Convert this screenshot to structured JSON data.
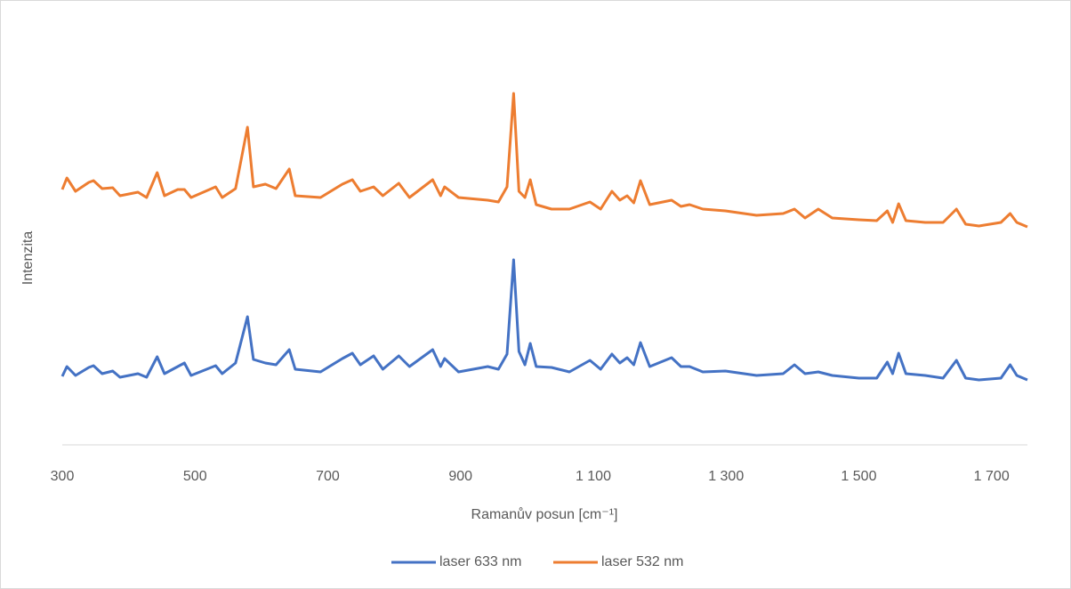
{
  "chart_data": {
    "type": "line",
    "x_label": "Ramanův posun [cm⁻¹]",
    "y_label": "Intenzita",
    "x": [
      300,
      307,
      320,
      340,
      347,
      360,
      376,
      387,
      414,
      427,
      443,
      454,
      474,
      484,
      494,
      531,
      541,
      561,
      579,
      588,
      606,
      622,
      642,
      651,
      689,
      722,
      737,
      749,
      769,
      783,
      807,
      823,
      858,
      870,
      876,
      897,
      941,
      957,
      970,
      980,
      988,
      997,
      1005,
      1014,
      1037,
      1064,
      1095,
      1111,
      1128,
      1140,
      1151,
      1161,
      1171,
      1185,
      1218,
      1232,
      1245,
      1265,
      1299,
      1346,
      1386,
      1403,
      1419,
      1439,
      1460,
      1500,
      1527,
      1543,
      1551,
      1560,
      1571,
      1600,
      1627,
      1647,
      1661,
      1681,
      1714,
      1728,
      1738,
      1754
    ],
    "series": [
      {
        "name": "laser 633 nm",
        "color": "#4472c4",
        "values": [
          77,
          88,
          78,
          87,
          89,
          80,
          83,
          76,
          80,
          76,
          99,
          80,
          88,
          92,
          78,
          89,
          80,
          92,
          144,
          96,
          92,
          90,
          107,
          85,
          82,
          97,
          103,
          90,
          100,
          85,
          100,
          88,
          107,
          88,
          97,
          82,
          88,
          85,
          102,
          208,
          105,
          90,
          114,
          88,
          87,
          82,
          95,
          85,
          102,
          92,
          98,
          90,
          115,
          88,
          98,
          88,
          88,
          82,
          83,
          78,
          80,
          90,
          80,
          82,
          78,
          75,
          75,
          93,
          80,
          103,
          80,
          78,
          75,
          95,
          75,
          73,
          75,
          90,
          78,
          73
        ]
      },
      {
        "name": "laser 532 nm",
        "color": "#ed7d31",
        "values": [
          287,
          300,
          285,
          295,
          297,
          288,
          289,
          280,
          284,
          278,
          306,
          280,
          287,
          287,
          278,
          290,
          278,
          288,
          357,
          290,
          293,
          288,
          310,
          280,
          278,
          293,
          298,
          285,
          290,
          280,
          294,
          278,
          298,
          280,
          290,
          278,
          275,
          273,
          290,
          395,
          285,
          278,
          298,
          270,
          265,
          265,
          273,
          265,
          285,
          275,
          280,
          272,
          297,
          270,
          275,
          268,
          270,
          265,
          263,
          258,
          260,
          265,
          255,
          265,
          255,
          253,
          252,
          263,
          250,
          271,
          252,
          250,
          250,
          265,
          248,
          246,
          250,
          260,
          250,
          245
        ]
      }
    ],
    "xlim": [
      300,
      1754
    ],
    "xticks": [
      300,
      500,
      700,
      900,
      {
        "value": 1100,
        "label": "1 100"
      },
      {
        "value": 1300,
        "label": "1 300"
      },
      {
        "value": 1500,
        "label": "1 500"
      },
      {
        "value": 1700,
        "label": "1 700"
      }
    ],
    "ylim": [
      0,
      480
    ],
    "legend": "bottom"
  }
}
